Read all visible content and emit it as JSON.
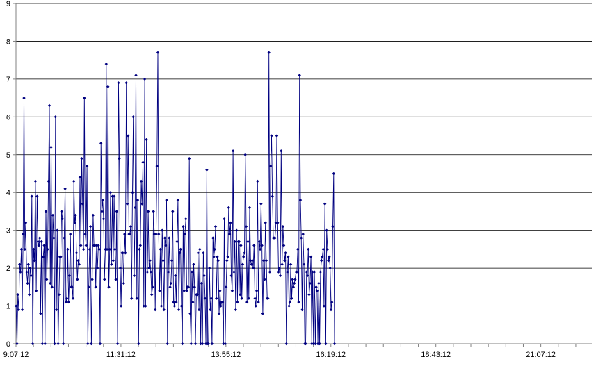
{
  "chart_data": {
    "type": "line",
    "title": "",
    "xlabel": "",
    "ylabel": "",
    "ylim": [
      0,
      9
    ],
    "yticks": [
      0,
      1,
      2,
      3,
      4,
      5,
      6,
      7,
      8,
      9
    ],
    "xlim_minutes": [
      547,
      1337
    ],
    "xticks": [
      {
        "label": "9:07:12",
        "minutes": 547
      },
      {
        "label": "11:31:12",
        "minutes": 691
      },
      {
        "label": "13:55:12",
        "minutes": 835
      },
      {
        "label": "16:19:12",
        "minutes": 979
      },
      {
        "label": "18:43:12",
        "minutes": 1123
      },
      {
        "label": "21:07:12",
        "minutes": 1267
      }
    ],
    "grid": "horizontal",
    "legend": "none",
    "colors": {
      "line": "#000080",
      "grid": "#000000",
      "axis": "#808080"
    },
    "series": [
      {
        "start_time": "9:07:12",
        "step_minutes": 1.2,
        "values": [
          1.0,
          0.0,
          1.3,
          0.9,
          2.1,
          1.9,
          2.5,
          0.9,
          2.9,
          6.5,
          2.5,
          3.2,
          1.9,
          1.6,
          2.1,
          1.3,
          2.0,
          1.8,
          3.9,
          0.0,
          2.5,
          2.2,
          4.3,
          1.4,
          3.9,
          2.7,
          2.6,
          2.8,
          0.8,
          2.7,
          0.0,
          2.3,
          2.6,
          0.0,
          3.5,
          1.7,
          2.5,
          4.3,
          6.3,
          1.6,
          5.2,
          1.5,
          3.4,
          2.8,
          0.0,
          6.0,
          0.9,
          3.0,
          0.0,
          1.3,
          2.3,
          2.3,
          3.5,
          3.3,
          0.0,
          2.8,
          4.1,
          1.1,
          1.2,
          2.5,
          1.1,
          1.8,
          2.9,
          1.5,
          1.5,
          1.2,
          4.3,
          3.2,
          3.4,
          2.4,
          1.7,
          2.2,
          2.1,
          4.4,
          2.6,
          4.9,
          3.7,
          2.5,
          6.5,
          2.9,
          2.6,
          4.7,
          0.0,
          1.5,
          2.5,
          3.1,
          0.0,
          1.7,
          3.4,
          2.6,
          2.6,
          1.5,
          2.6,
          2.0,
          2.6,
          2.5,
          0.0,
          5.3,
          3.5,
          3.8,
          3.3,
          1.7,
          2.5,
          7.4,
          2.5,
          6.8,
          1.5,
          2.5,
          4.0,
          2.1,
          3.9,
          2.2,
          3.9,
          2.5,
          1.7,
          3.5,
          0.0,
          6.9,
          4.9,
          2.0,
          1.0,
          2.4,
          2.4,
          1.6,
          2.9,
          2.4,
          6.9,
          3.7,
          5.5,
          2.9,
          2.9,
          3.1,
          1.2,
          4.0,
          6.0,
          1.8,
          3.6,
          7.1,
          1.2,
          3.8,
          0.0,
          2.5,
          2.6,
          4.3,
          3.7,
          4.8,
          1.0,
          7.0,
          1.0,
          5.4,
          1.9,
          3.5,
          2.0,
          2.2,
          1.9,
          1.3,
          1.5,
          3.5,
          2.9,
          0.9,
          2.9,
          4.7,
          7.7,
          2.9,
          1.4,
          2.5,
          1.0,
          3.0,
          2.2,
          0.9,
          2.8,
          2.6,
          3.8,
          0.0,
          1.9,
          2.8,
          1.5,
          1.6,
          2.2,
          3.5,
          1.1,
          1.0,
          1.8,
          1.1,
          2.7,
          3.8,
          0.9,
          2.4,
          2.5,
          1.0,
          0.0,
          3.1,
          1.4,
          2.9,
          3.3,
          1.4,
          1.5,
          1.5,
          4.9,
          0.8,
          0.0,
          1.9,
          1.1,
          2.1,
          1.5,
          0.0,
          1.3,
          1.3,
          2.4,
          0.9,
          2.5,
          0.0,
          1.6,
          0.0,
          2.4,
          1.8,
          1.2,
          0.0,
          4.6,
          0.0,
          0.0,
          2.0,
          0.9,
          1.2,
          0.0,
          2.8,
          2.3,
          2.5,
          3.1,
          1.2,
          2.3,
          2.2,
          0.8,
          1.4,
          1.0,
          1.1,
          1.1,
          0.0,
          3.3,
          0.0,
          1.5,
          2.2,
          2.3,
          3.6,
          2.9,
          3.2,
          1.8,
          1.4,
          5.1,
          1.9,
          2.7,
          0.9,
          3.0,
          1.1,
          2.7,
          2.7,
          1.3,
          2.6,
          1.2,
          2.1,
          2.3,
          2.4,
          5.0,
          3.1,
          1.1,
          2.7,
          1.2,
          3.6,
          2.2,
          2.1,
          2.2,
          2.0,
          2.6,
          1.2,
          1.0,
          1.4,
          4.3,
          1.1,
          2.7,
          2.5,
          3.7,
          2.6,
          0.8,
          2.2,
          1.7,
          3.2,
          2.2,
          1.2,
          1.2,
          7.7,
          1.9,
          4.7,
          5.5,
          3.9,
          2.8,
          2.8,
          2.8,
          3.2,
          5.5,
          3.2,
          1.9,
          2.0,
          1.8,
          5.1,
          2.1,
          3.1,
          2.6,
          2.2,
          2.4,
          0.0,
          1.9,
          2.3,
          1.0,
          1.1,
          2.1,
          1.2,
          1.7,
          1.5,
          1.6,
          1.7,
          1.9,
          1.9,
          2.5,
          1.1,
          7.1,
          3.8,
          2.8,
          0.9,
          2.9,
          2.1,
          0.0,
          0.0,
          1.9,
          1.8,
          2.5,
          1.3,
          1.6,
          2.3,
          0.0,
          1.9,
          0.0,
          1.9,
          0.0,
          1.5,
          1.4,
          0.0,
          1.6,
          0.0,
          1.9,
          2.2,
          2.3,
          2.5,
          1.0,
          3.7,
          0.0,
          3.0,
          2.5,
          2.2,
          2.3,
          2.0,
          0.9,
          1.1,
          3.1,
          4.5,
          0.0
        ]
      }
    ]
  }
}
